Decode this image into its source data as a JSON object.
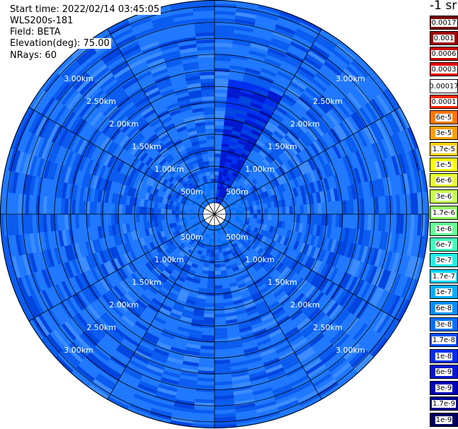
{
  "info": {
    "start_time": "Start time: 2022/02/14 03:45:05",
    "instrument": "WLS200s-181",
    "field": "Field: BETA",
    "elevation": "Elevation(deg): 75.00",
    "nrays": "NRays: 60"
  },
  "legend": {
    "title": "-1 sr",
    "entries": [
      {
        "label": "0.0017",
        "color": "#7a0000"
      },
      {
        "label": "0.001",
        "color": "#a00000"
      },
      {
        "label": "0.0006",
        "color": "#c80000"
      },
      {
        "label": "0.0003",
        "color": "#e80000"
      },
      {
        "label": "0.00017",
        "color": "#ffffff"
      },
      {
        "label": "0.0001",
        "color": "#ff2800"
      },
      {
        "label": "6e-5",
        "color": "#ff7800"
      },
      {
        "label": "3e-5",
        "color": "#ffa000"
      },
      {
        "label": "1.7e-5",
        "color": "#ffd200"
      },
      {
        "label": "1e-5",
        "color": "#ffff00"
      },
      {
        "label": "6e-6",
        "color": "#e6ff30"
      },
      {
        "label": "3e-6",
        "color": "#c8ff50"
      },
      {
        "label": "1.7e-6",
        "color": "#96ff64"
      },
      {
        "label": "1e-6",
        "color": "#64ff96"
      },
      {
        "label": "6e-7",
        "color": "#40ffbe"
      },
      {
        "label": "3e-7",
        "color": "#20f0e6"
      },
      {
        "label": "1.7e-7",
        "color": "#00d8ff"
      },
      {
        "label": "1e-7",
        "color": "#00b0ff"
      },
      {
        "label": "6e-8",
        "color": "#0090ff"
      },
      {
        "label": "3e-8",
        "color": "#0070ff"
      },
      {
        "label": "1.7e-8",
        "color": "#0050ff"
      },
      {
        "label": "1e-8",
        "color": "#0030f0"
      },
      {
        "label": "6e-9",
        "color": "#0018d0"
      },
      {
        "label": "3e-9",
        "color": "#0000b8"
      },
      {
        "label": "1.7e-9",
        "color": "#000090"
      },
      {
        "label": "1e-9",
        "color": "#000060"
      }
    ]
  },
  "chart_data": {
    "type": "heatmap",
    "projection": "polar-ppi",
    "field": "BETA",
    "units": "sr-1",
    "elevation_deg": 75.0,
    "n_rays": 60,
    "max_range_km": 3.35,
    "range_rings_km": [
      0.25,
      0.5,
      0.75,
      1.0,
      1.25,
      1.5,
      1.75,
      2.0,
      2.25,
      2.5,
      2.75,
      3.0,
      3.25
    ],
    "range_labels": [
      "500m",
      "1.00km",
      "1.50km",
      "2.00km",
      "2.50km",
      "3.00km"
    ],
    "range_label_values_km": [
      0.5,
      1.0,
      1.5,
      2.0,
      2.5,
      3.0
    ],
    "spoke_azimuths_deg": [
      0,
      30,
      60,
      90,
      120,
      150,
      180,
      210,
      240,
      270,
      300,
      330
    ],
    "dominant_values": "mostly 1.7e-8 to 1e-7 sr-1 across the domain",
    "feature": "enhanced low values (~6e-9 to 1.7e-8) in a narrow sector near azimuth 10-25 deg from 0.2 to 2.0 km",
    "colors": {
      "ring": "#000000",
      "background": "#ffffff"
    }
  }
}
